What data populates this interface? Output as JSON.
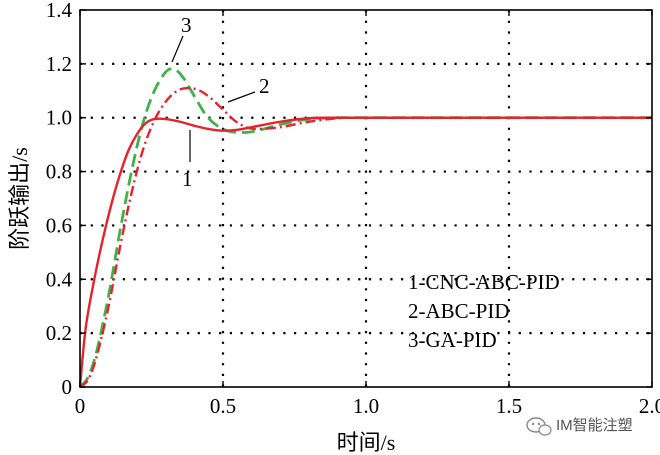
{
  "chart_data": {
    "type": "line",
    "title": "",
    "xlabel": "时间/s",
    "ylabel": "阶跃输出/s",
    "xlim": [
      0,
      2.0
    ],
    "ylim": [
      0,
      1.4
    ],
    "x_ticks": [
      0,
      0.5,
      1.0,
      1.5,
      2.0
    ],
    "x_tick_labels": [
      "0",
      "0.5",
      "1.0",
      "1.5",
      "2.0"
    ],
    "y_ticks": [
      0,
      0.2,
      0.4,
      0.6,
      0.8,
      1.0,
      1.2,
      1.4
    ],
    "y_tick_labels": [
      "0",
      "0.2",
      "0.4",
      "0.6",
      "0.8",
      "1.0",
      "1.2",
      "1.4"
    ],
    "grid": "dotted",
    "legend_position": "bottom-right",
    "legend": [
      "1-CNC-ABC-PID",
      "2-ABC-PID",
      "3-GA-PID"
    ],
    "annotations": [
      {
        "text": "1",
        "series": "1-CNC-ABC-PID"
      },
      {
        "text": "2",
        "series": "2-ABC-PID"
      },
      {
        "text": "3",
        "series": "3-GA-PID"
      }
    ],
    "series": [
      {
        "name": "1-CNC-ABC-PID",
        "color": "#e8212a",
        "style": "solid",
        "x": [
          0,
          0.02,
          0.05,
          0.08,
          0.11,
          0.14,
          0.17,
          0.2,
          0.23,
          0.26,
          0.3,
          0.35,
          0.4,
          0.45,
          0.5,
          0.55,
          0.6,
          0.7,
          0.8,
          0.9,
          1.0,
          1.1,
          1.2,
          1.5,
          2.0
        ],
        "y": [
          0,
          0.22,
          0.4,
          0.55,
          0.68,
          0.79,
          0.88,
          0.94,
          0.98,
          0.995,
          0.995,
          0.985,
          0.97,
          0.958,
          0.952,
          0.955,
          0.965,
          0.985,
          0.998,
          1.0,
          1.0,
          1.0,
          1.0,
          1.0,
          1.0
        ]
      },
      {
        "name": "2-ABC-PID",
        "color": "#e8212a",
        "style": "dash-dot",
        "x": [
          0,
          0.03,
          0.06,
          0.1,
          0.14,
          0.18,
          0.22,
          0.26,
          0.3,
          0.34,
          0.38,
          0.42,
          0.46,
          0.5,
          0.54,
          0.58,
          0.62,
          0.7,
          0.8,
          0.9,
          1.0,
          1.2,
          1.5,
          2.0
        ],
        "y": [
          0,
          0.03,
          0.12,
          0.3,
          0.52,
          0.72,
          0.88,
          0.99,
          1.06,
          1.1,
          1.11,
          1.1,
          1.07,
          1.03,
          0.99,
          0.965,
          0.958,
          0.965,
          0.985,
          0.998,
          1.0,
          1.0,
          1.0,
          1.0
        ]
      },
      {
        "name": "3-GA-PID",
        "color": "#3fb34a",
        "style": "dashed",
        "x": [
          0,
          0.03,
          0.06,
          0.1,
          0.14,
          0.18,
          0.22,
          0.26,
          0.3,
          0.33,
          0.36,
          0.4,
          0.44,
          0.48,
          0.52,
          0.56,
          0.6,
          0.65,
          0.7,
          0.8,
          0.9,
          1.0,
          1.2,
          1.5,
          2.0
        ],
        "y": [
          0,
          0.04,
          0.14,
          0.34,
          0.58,
          0.8,
          0.98,
          1.1,
          1.17,
          1.18,
          1.15,
          1.08,
          1.01,
          0.97,
          0.95,
          0.945,
          0.948,
          0.96,
          0.975,
          0.995,
          1.0,
          1.0,
          1.0,
          1.0,
          1.0
        ]
      }
    ]
  },
  "watermark": {
    "text": "IM智能注塑",
    "icon": "wechat-bubble-icon"
  }
}
